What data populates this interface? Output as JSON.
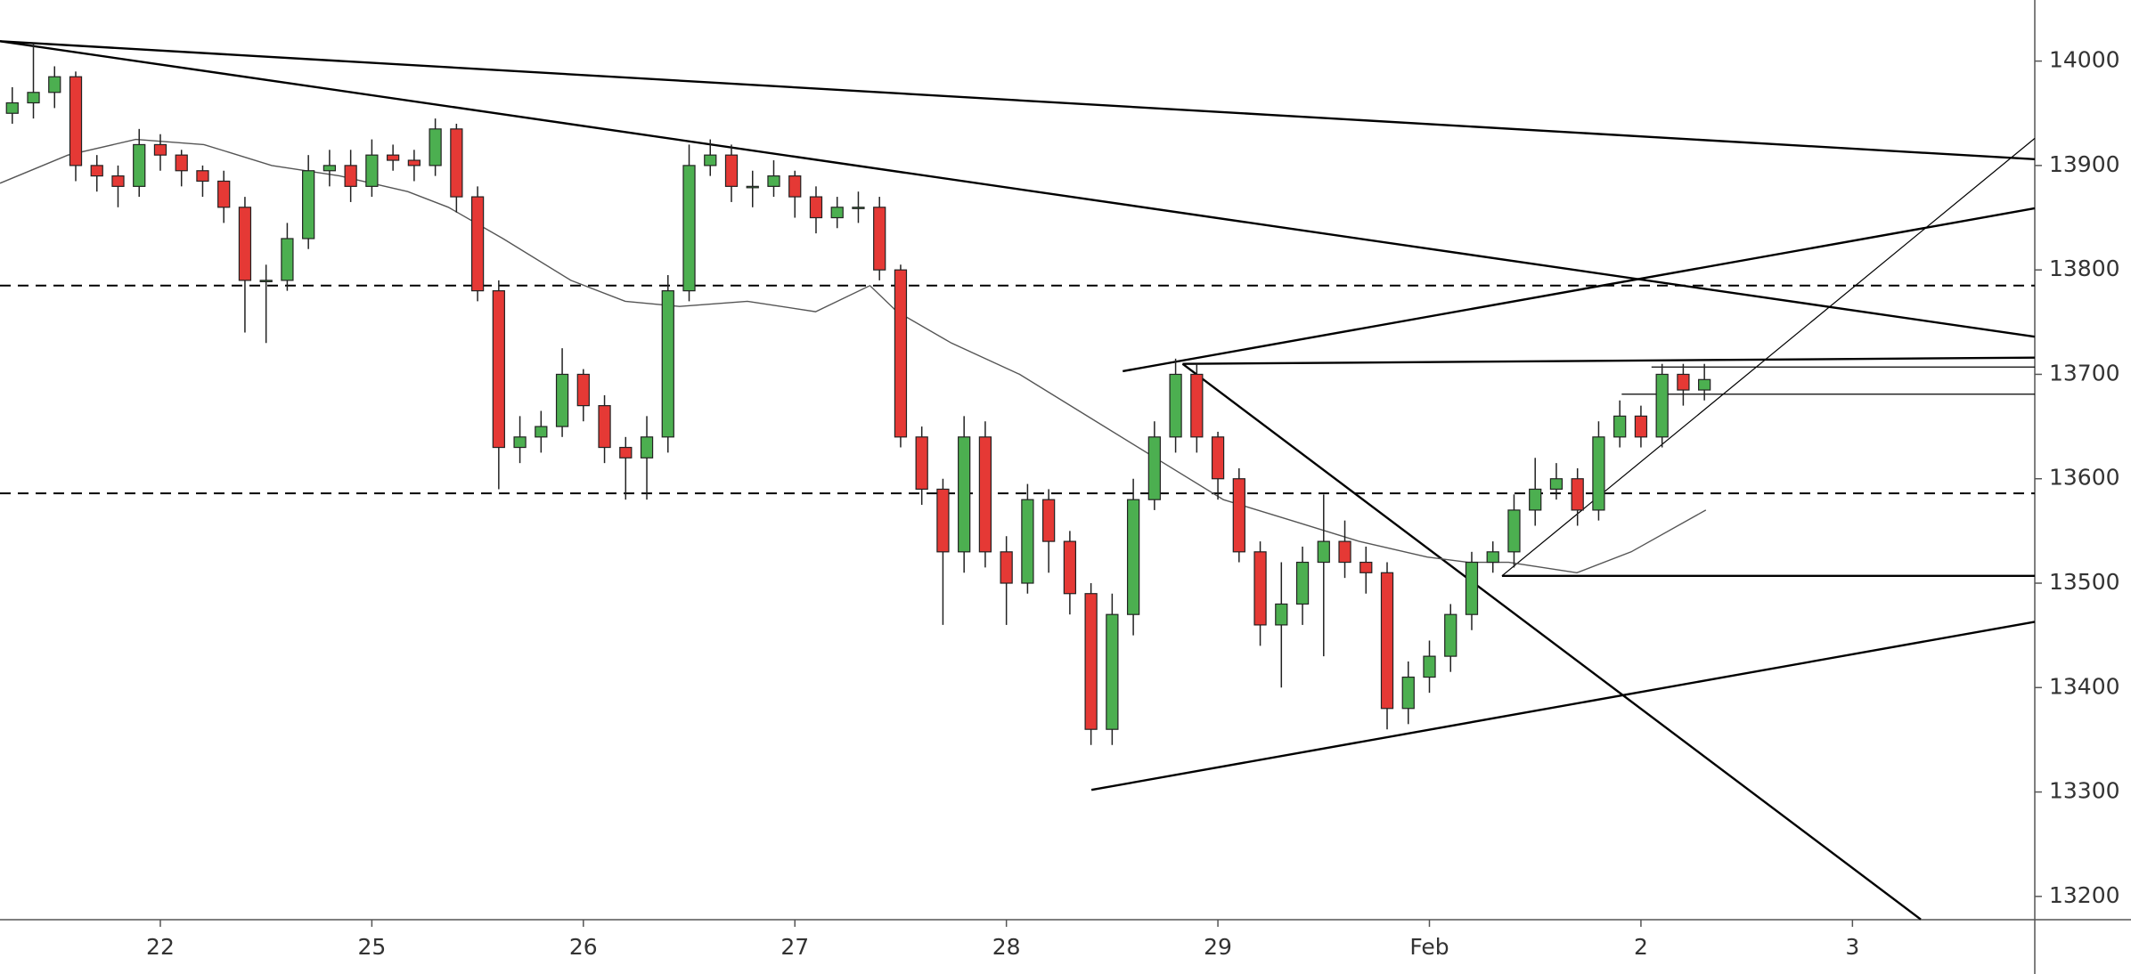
{
  "chart_data": {
    "type": "candlestick",
    "xlim": [
      -0.758,
      8.862
    ],
    "ylim": [
      13177.7,
      14058.5
    ],
    "yticks": [
      13200,
      13300,
      13400,
      13500,
      13600,
      13700,
      13800,
      13900,
      14000
    ],
    "xticks": [
      {
        "value": 0,
        "label": "22"
      },
      {
        "value": 1,
        "label": "25"
      },
      {
        "value": 2,
        "label": "26"
      },
      {
        "value": 3,
        "label": "27"
      },
      {
        "value": 4,
        "label": "28"
      },
      {
        "value": 5,
        "label": "29"
      },
      {
        "value": 6,
        "label": "Feb"
      },
      {
        "value": 7,
        "label": "2"
      },
      {
        "value": 8,
        "label": "3"
      }
    ],
    "up_color": "#4caf50",
    "down_color": "#e53935",
    "candles": {
      "x": [
        -0.7,
        -0.6,
        -0.5,
        -0.4,
        -0.3,
        -0.2,
        -0.1,
        0,
        0.1,
        0.2,
        0.3,
        0.4,
        0.5,
        0.6,
        0.7,
        0.8,
        0.9,
        1,
        1.1,
        1.2,
        1.3,
        1.4,
        1.5,
        1.6,
        1.7,
        1.8,
        1.9,
        2,
        2.1,
        2.2,
        2.3,
        2.4,
        2.5,
        2.6,
        2.7,
        2.8,
        2.9,
        3,
        3.1,
        3.2,
        3.3,
        3.4,
        3.5,
        3.6,
        3.7,
        3.8,
        3.9,
        4,
        4.1,
        4.2,
        4.3,
        4.4,
        4.5,
        4.6,
        4.7,
        4.8,
        4.9,
        5,
        5.1,
        5.2,
        5.3,
        5.4,
        5.5,
        5.6,
        5.7,
        5.8,
        5.9,
        6,
        6.1,
        6.2,
        6.3,
        6.4,
        6.5,
        6.6,
        6.7,
        6.8,
        6.9,
        7,
        7.1,
        7.2,
        7.3
      ],
      "open": [
        13950,
        13960,
        13970,
        13985,
        13900,
        13890,
        13880,
        13920,
        13910,
        13895,
        13885,
        13860,
        13790,
        13790,
        13830,
        13895,
        13900,
        13880,
        13910,
        13905,
        13900,
        13935,
        13870,
        13780,
        13630,
        13640,
        13650,
        13700,
        13670,
        13630,
        13620,
        13640,
        13780,
        13900,
        13910,
        13880,
        13880,
        13890,
        13870,
        13850,
        13860,
        13860,
        13800,
        13640,
        13590,
        13530,
        13640,
        13530,
        13500,
        13580,
        13540,
        13490,
        13360,
        13470,
        13580,
        13640,
        13700,
        13640,
        13600,
        13530,
        13460,
        13480,
        13520,
        13540,
        13520,
        13510,
        13380,
        13410,
        13430,
        13470,
        13520,
        13530,
        13570,
        13590,
        13600,
        13570,
        13640,
        13660,
        13640,
        13700,
        13685
      ],
      "high": [
        13975,
        14017,
        13995,
        13990,
        13910,
        13900,
        13935,
        13930,
        13915,
        13900,
        13895,
        13870,
        13805,
        13845,
        13910,
        13915,
        13915,
        13925,
        13920,
        13915,
        13945,
        13940,
        13880,
        13790,
        13660,
        13665,
        13725,
        13705,
        13680,
        13640,
        13660,
        13795,
        13920,
        13925,
        13920,
        13895,
        13905,
        13895,
        13880,
        13870,
        13875,
        13870,
        13805,
        13650,
        13600,
        13660,
        13655,
        13545,
        13595,
        13590,
        13550,
        13500,
        13490,
        13600,
        13655,
        13715,
        13710,
        13645,
        13610,
        13540,
        13520,
        13535,
        13585,
        13560,
        13535,
        13520,
        13425,
        13445,
        13480,
        13530,
        13540,
        13585,
        13620,
        13615,
        13610,
        13655,
        13675,
        13670,
        13710,
        13710,
        13710
      ],
      "low": [
        13940,
        13945,
        13955,
        13885,
        13875,
        13860,
        13870,
        13895,
        13880,
        13870,
        13845,
        13740,
        13730,
        13780,
        13820,
        13880,
        13865,
        13870,
        13895,
        13885,
        13890,
        13855,
        13770,
        13590,
        13615,
        13625,
        13640,
        13655,
        13615,
        13580,
        13580,
        13625,
        13770,
        13890,
        13865,
        13860,
        13870,
        13850,
        13835,
        13840,
        13845,
        13790,
        13630,
        13575,
        13460,
        13510,
        13515,
        13460,
        13490,
        13510,
        13470,
        13345,
        13345,
        13450,
        13570,
        13625,
        13625,
        13580,
        13520,
        13440,
        13400,
        13460,
        13430,
        13505,
        13490,
        13360,
        13365,
        13395,
        13415,
        13455,
        13510,
        13515,
        13555,
        13580,
        13555,
        13560,
        13630,
        13630,
        13630,
        13670,
        13675
      ],
      "close": [
        13960,
        13970,
        13985,
        13900,
        13890,
        13880,
        13920,
        13910,
        13895,
        13885,
        13860,
        13790,
        13790,
        13830,
        13895,
        13900,
        13880,
        13910,
        13905,
        13900,
        13935,
        13870,
        13780,
        13630,
        13640,
        13650,
        13700,
        13670,
        13630,
        13620,
        13640,
        13780,
        13900,
        13910,
        13880,
        13880,
        13890,
        13870,
        13850,
        13860,
        13860,
        13800,
        13640,
        13590,
        13530,
        13640,
        13530,
        13500,
        13580,
        13540,
        13490,
        13360,
        13470,
        13580,
        13640,
        13700,
        13640,
        13600,
        13530,
        13460,
        13480,
        13520,
        13540,
        13520,
        13510,
        13380,
        13410,
        13430,
        13470,
        13520,
        13530,
        13570,
        13590,
        13600,
        13570,
        13640,
        13660,
        13640,
        13700,
        13685,
        13695
      ]
    },
    "moving_average": {
      "color": "#555555",
      "x": [
        -0.758,
        -0.437,
        -0.116,
        0.206,
        0.527,
        0.848,
        1.17,
        1.362,
        1.62,
        1.941,
        2.198,
        2.455,
        2.776,
        3.098,
        3.355,
        3.483,
        3.74,
        4.062,
        4.383,
        4.704,
        5.026,
        5.347,
        5.668,
        5.99,
        6.183,
        6.375,
        6.697,
        6.954,
        7.307
      ],
      "values": [
        13883,
        13910,
        13925,
        13920,
        13900,
        13890,
        13875,
        13860,
        13830,
        13790,
        13770,
        13765,
        13770,
        13760,
        13785,
        13760,
        13730,
        13700,
        13660,
        13620,
        13580,
        13560,
        13540,
        13525,
        13520,
        13520,
        13510,
        13530,
        13570
      ]
    },
    "drawings": [
      {
        "style": "dashed",
        "x": [
          -0.758,
          8.862
        ],
        "y": [
          13785,
          13785
        ]
      },
      {
        "style": "dashed",
        "x": [
          -0.758,
          8.862
        ],
        "y": [
          13586,
          13586
        ]
      },
      {
        "style": "solid",
        "x": [
          -0.758,
          8.862
        ],
        "y": [
          14019,
          13906
        ]
      },
      {
        "style": "solid",
        "x": [
          -0.758,
          8.862
        ],
        "y": [
          14019,
          13736
        ]
      },
      {
        "style": "solid",
        "x": [
          4.55,
          8.862
        ],
        "y": [
          13703,
          13859
        ]
      },
      {
        "style": "solid",
        "x": [
          4.833,
          8.862
        ],
        "y": [
          13710,
          13716
        ]
      },
      {
        "style": "solid",
        "x": [
          4.833,
          8.323
        ],
        "y": [
          13710,
          13178
        ]
      },
      {
        "style": "solid",
        "x": [
          4.402,
          8.862
        ],
        "y": [
          13302,
          13463
        ]
      },
      {
        "style": "solid",
        "x": [
          6.343,
          8.862
        ],
        "y": [
          13507,
          13507
        ]
      },
      {
        "style": "thin",
        "x": [
          6.343,
          8.862
        ],
        "y": [
          13507,
          13926
        ]
      },
      {
        "style": "thin",
        "x": [
          7.05,
          8.862
        ],
        "y": [
          13707,
          13707
        ]
      },
      {
        "style": "thin",
        "x": [
          6.909,
          8.862
        ],
        "y": [
          13681,
          13681
        ]
      }
    ]
  }
}
